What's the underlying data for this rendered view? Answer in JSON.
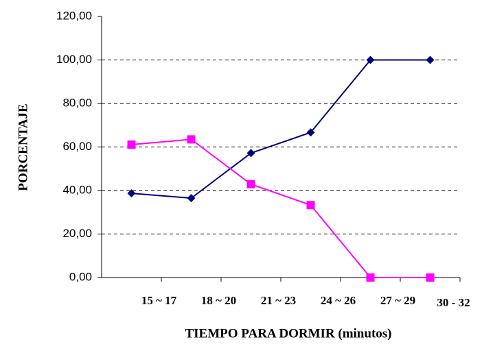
{
  "chart_data": {
    "type": "line",
    "xlabel": "TIEMPO PARA DORMIR (minutos)",
    "ylabel": "PORCENTAJE",
    "categories": [
      "15 ~ 17",
      "18 ~ 20",
      "21 ~ 23",
      "24 ~ 26",
      "27 ~ 29",
      "30 - 32"
    ],
    "series": [
      {
        "color": "#000080",
        "marker": "diamond",
        "values": [
          38.7,
          36.5,
          57.2,
          66.7,
          100,
          100
        ]
      },
      {
        "color": "#ff00ff",
        "marker": "square",
        "values": [
          61.1,
          63.5,
          42.9,
          33.3,
          0,
          0
        ]
      }
    ],
    "ylim": [
      0,
      120
    ],
    "yticks": [
      {
        "value": 0,
        "label": "0,00"
      },
      {
        "value": 20,
        "label": "20,00"
      },
      {
        "value": 40,
        "label": "40,00"
      },
      {
        "value": 60,
        "label": "60,00"
      },
      {
        "value": 80,
        "label": "80,00"
      },
      {
        "value": 100,
        "label": "100,00"
      },
      {
        "value": 120,
        "label": "120,00"
      }
    ],
    "grid": true
  }
}
